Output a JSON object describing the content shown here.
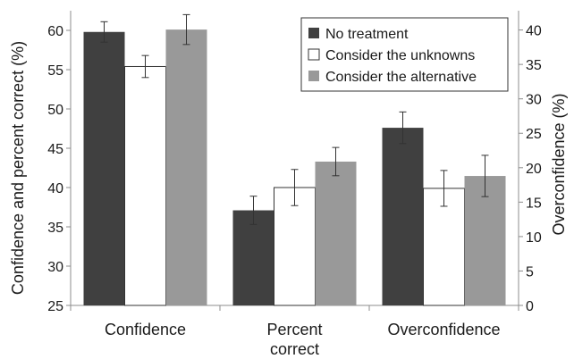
{
  "chart_data": {
    "type": "bar",
    "categories": [
      [
        "Confidence"
      ],
      [
        "Percent",
        "correct"
      ],
      [
        "Overconfidence"
      ]
    ],
    "series": [
      {
        "name": "No treatment",
        "color": "#404040",
        "axis": [
          "left",
          "left",
          "right"
        ],
        "values": [
          59.8,
          37.1,
          25.8
        ],
        "err": [
          1.3,
          1.8,
          2.3
        ]
      },
      {
        "name": "Consider the unknowns",
        "color": "#ffffff",
        "axis": [
          "left",
          "left",
          "right"
        ],
        "values": [
          55.4,
          40.0,
          17.0
        ],
        "err": [
          1.4,
          2.3,
          2.6
        ]
      },
      {
        "name": "Consider the alternative",
        "color": "#999999",
        "axis": [
          "left",
          "left",
          "right"
        ],
        "values": [
          60.1,
          43.3,
          18.8
        ],
        "err": [
          1.9,
          1.8,
          3.0
        ]
      }
    ],
    "y_left": {
      "label": "Confidence and percent correct (%)",
      "min": 25,
      "max": 62.5,
      "ticks": [
        25,
        30,
        35,
        40,
        45,
        50,
        55,
        60
      ]
    },
    "y_right": {
      "label": "Overconfidence (%)",
      "min": 0,
      "max": 42.8,
      "ticks": [
        0,
        5,
        10,
        15,
        20,
        25,
        30,
        35,
        40
      ]
    },
    "legend_position": "top-right",
    "grid": false
  }
}
